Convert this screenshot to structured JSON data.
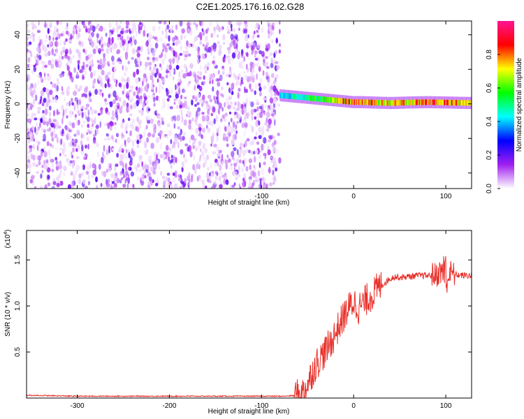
{
  "figure": {
    "title": "C2E1.2025.176.16.02.G28"
  },
  "chart_data": [
    {
      "type": "heatmap",
      "title": "C2E1.2025.176.16.02.G28",
      "xlabel": "Height of straight line (km)",
      "ylabel": "Frequency (Hz)",
      "xlim": [
        -355,
        128
      ],
      "ylim": [
        -49,
        48
      ],
      "xticks": [
        -300,
        -200,
        -100,
        0,
        100
      ],
      "yticks": [
        -40,
        -20,
        0,
        20,
        40
      ],
      "colorbar": {
        "label": "Normalized spectral amplitude",
        "range": [
          0.0,
          1.0
        ],
        "ticks": [
          "0.0",
          "0.2",
          "0.4",
          "0.6",
          "0.8"
        ],
        "colors": [
          "#ffffff",
          "#a020f0",
          "#0000ff",
          "#00ffff",
          "#00ff00",
          "#ffff00",
          "#ff0000",
          "#ff1493"
        ]
      },
      "noise_region_x": [
        -355,
        -80
      ],
      "signal_ridge": {
        "x": [
          -80,
          -70,
          -60,
          -50,
          -40,
          -30,
          -20,
          -10,
          0,
          10,
          20,
          40,
          60,
          80,
          100,
          128
        ],
        "freq": [
          5,
          4.5,
          4,
          3.5,
          3,
          2.5,
          2,
          1.5,
          1,
          1,
          0.8,
          0.5,
          0.8,
          1,
          0.8,
          0.5
        ],
        "amplitude": [
          0.4,
          0.45,
          0.5,
          0.55,
          0.6,
          0.7,
          0.75,
          0.8,
          0.85,
          0.8,
          0.8,
          0.75,
          0.8,
          0.9,
          0.85,
          0.7
        ]
      }
    },
    {
      "type": "line",
      "xlabel": "Height of straight line (km)",
      "ylabel": "SNR (10 * v/v)",
      "y_scale_label": "(x10",
      "y_scale_exp": "4",
      "y_scale_close": ")",
      "xlim": [
        -355,
        128
      ],
      "ylim": [
        0,
        1.82
      ],
      "xticks": [
        -300,
        -200,
        -100,
        0,
        100
      ],
      "yticks": [
        0.5,
        1.0,
        1.5
      ],
      "ytick_labels": [
        "0.5",
        "1.0",
        "1.5"
      ],
      "series": [
        {
          "color": "#e8302a",
          "x": [
            -355,
            -300,
            -250,
            -200,
            -150,
            -100,
            -75,
            -60,
            -55,
            -50,
            -45,
            -40,
            -35,
            -30,
            -25,
            -20,
            -15,
            -10,
            -5,
            0,
            5,
            10,
            15,
            20,
            25,
            30,
            35,
            40,
            45,
            50,
            60,
            70,
            80,
            90,
            95,
            100,
            105,
            110,
            120,
            128
          ],
          "y": [
            0.03,
            0.02,
            0.02,
            0.02,
            0.02,
            0.02,
            0.02,
            0.03,
            0.06,
            0.15,
            0.28,
            0.38,
            0.45,
            0.52,
            0.6,
            0.7,
            0.8,
            0.9,
            0.98,
            1.05,
            0.98,
            1.02,
            1.08,
            1.12,
            1.18,
            1.22,
            1.26,
            1.3,
            1.32,
            1.31,
            1.32,
            1.33,
            1.33,
            1.34,
            1.38,
            1.25,
            1.36,
            1.34,
            1.33,
            1.33
          ]
        }
      ]
    }
  ]
}
